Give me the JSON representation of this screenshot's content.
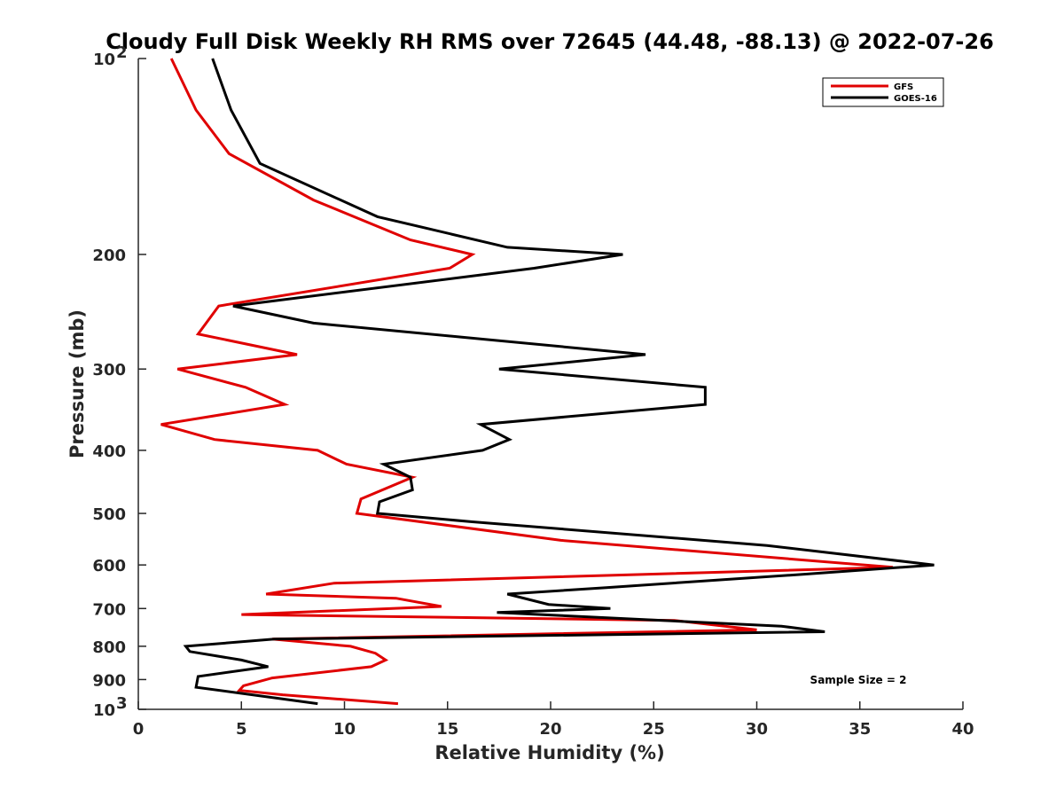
{
  "chart_data": {
    "type": "line",
    "title": "Cloudy Full Disk Weekly RH RMS over 72645 (44.48, -88.13) @ 2022-07-26",
    "xlabel": "Relative Humidity (%)",
    "ylabel": "Pressure (mb)",
    "xlim": [
      0,
      40
    ],
    "ylim": [
      100,
      1000
    ],
    "y_scale": "log",
    "y_reversed": true,
    "grid": false,
    "legend_position": "top-right",
    "x_ticks": [
      "0",
      "5",
      "10",
      "15",
      "20",
      "25",
      "30",
      "35",
      "40"
    ],
    "y_ticks": [
      {
        "value": 100,
        "label": "10",
        "sup": "2"
      },
      {
        "value": 200,
        "label": "200",
        "sup": ""
      },
      {
        "value": 300,
        "label": "300",
        "sup": ""
      },
      {
        "value": 400,
        "label": "400",
        "sup": ""
      },
      {
        "value": 500,
        "label": "500",
        "sup": ""
      },
      {
        "value": 600,
        "label": "600",
        "sup": ""
      },
      {
        "value": 700,
        "label": "700",
        "sup": ""
      },
      {
        "value": 800,
        "label": "800",
        "sup": ""
      },
      {
        "value": 900,
        "label": "900",
        "sup": ""
      },
      {
        "value": 1000,
        "label": "10",
        "sup": "3"
      }
    ],
    "series": [
      {
        "name": "GFS",
        "color": "#e00000",
        "x": [
          1.6,
          2.8,
          4.4,
          8.5,
          13.2,
          16.2,
          15.1,
          3.9,
          2.9,
          7.7,
          1.9,
          5.2,
          7.1,
          1.1,
          3.7,
          8.7,
          10.1,
          13.3,
          10.8,
          10.6,
          20.5,
          36.6,
          9.5,
          6.2,
          12.5,
          14.7,
          5.0,
          26.0,
          30.0,
          6.5,
          10.3,
          11.5,
          12.0,
          11.3,
          6.5,
          5.1,
          4.9,
          7.0,
          12.6
        ],
        "y": [
          100,
          120,
          140,
          165,
          190,
          200,
          210,
          240,
          265,
          285,
          300,
          320,
          340,
          365,
          385,
          400,
          420,
          440,
          475,
          500,
          550,
          605,
          640,
          665,
          675,
          695,
          715,
          730,
          755,
          780,
          800,
          820,
          840,
          860,
          895,
          920,
          935,
          950,
          980
        ]
      },
      {
        "name": "GOES-16",
        "color": "#000000",
        "x": [
          3.6,
          4.5,
          5.9,
          11.6,
          17.9,
          23.5,
          19.2,
          4.6,
          8.5,
          24.6,
          17.5,
          27.5,
          27.5,
          16.6,
          18.0,
          16.7,
          11.9,
          13.2,
          13.3,
          11.7,
          11.6,
          16.2,
          30.5,
          38.6,
          32.3,
          22.7,
          17.9,
          19.9,
          22.9,
          17.4,
          31.2,
          33.3,
          6.6,
          2.3,
          2.5,
          5.0,
          6.3,
          2.9,
          2.8,
          8.7
        ],
        "y": [
          100,
          120,
          145,
          175,
          195,
          200,
          210,
          240,
          255,
          285,
          300,
          320,
          340,
          365,
          385,
          400,
          420,
          440,
          460,
          480,
          500,
          515,
          560,
          600,
          620,
          650,
          665,
          690,
          700,
          710,
          745,
          760,
          780,
          800,
          815,
          840,
          860,
          890,
          925,
          980
        ]
      }
    ],
    "annotations": [
      "Sample Size = 2"
    ]
  }
}
